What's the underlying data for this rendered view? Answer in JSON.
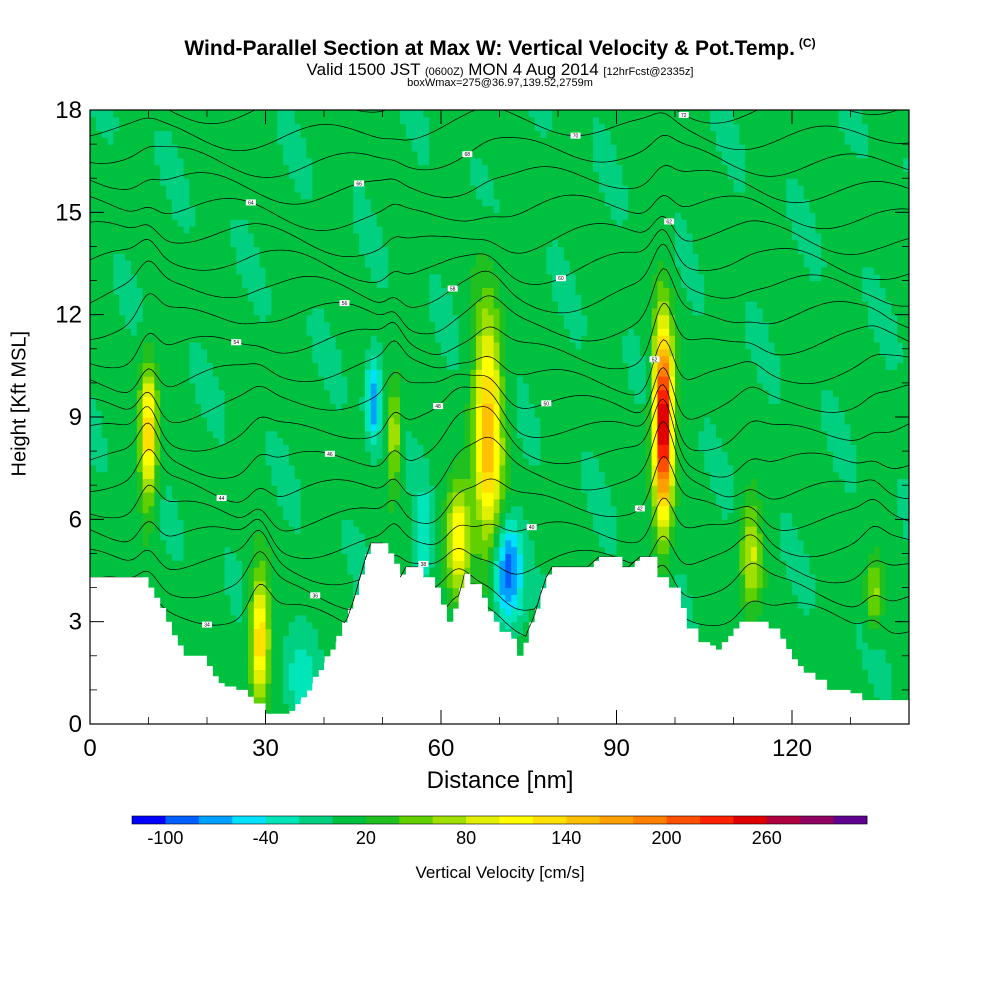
{
  "title": {
    "main": "Wind-Parallel Section at Max W: Vertical Velocity & Pot.Temp.",
    "copyright": "(C)"
  },
  "subtitle": {
    "valid": "Valid 1500 JST",
    "utc": "(0600Z)",
    "date": "MON 4 Aug 2014",
    "forecast": "[12hrFcst@2335z]",
    "box": "boxWmax=275@36.97,139.52,2759m"
  },
  "chart_data": {
    "type": "heatmap",
    "title": "Wind-Parallel Section at Max W: Vertical Velocity & Pot.Temp.",
    "xlabel": "Distance [nm]",
    "ylabel": "Height [Kft MSL]",
    "xlim": [
      0,
      140
    ],
    "ylim": [
      0,
      18
    ],
    "x_ticks": [
      0,
      30,
      60,
      90,
      120
    ],
    "y_ticks": [
      0,
      3,
      6,
      9,
      12,
      15,
      18
    ],
    "x_tick_labels": [
      "0",
      "30",
      "60",
      "90",
      "120"
    ],
    "y_tick_labels": [
      "0",
      "3",
      "6",
      "9",
      "12",
      "15",
      "18"
    ],
    "colorbar": {
      "label": "Vertical Velocity [cm/s]",
      "tick_labels": [
        "-100",
        "-40",
        "20",
        "80",
        "140",
        "200",
        "260"
      ],
      "colors": [
        "#0000ff",
        "#0060ff",
        "#00a0ff",
        "#00e0ff",
        "#00e6b8",
        "#00d080",
        "#00c040",
        "#20c020",
        "#60d000",
        "#a0e000",
        "#e0f000",
        "#ffff00",
        "#ffe000",
        "#ffc000",
        "#ffa000",
        "#ff8000",
        "#ff5000",
        "#ff2000",
        "#e00000",
        "#b00040",
        "#900060",
        "#600090"
      ]
    },
    "terrain": [
      [
        0,
        4.3
      ],
      [
        9,
        4.3
      ],
      [
        10,
        4.0
      ],
      [
        11,
        3.7
      ],
      [
        12,
        3.4
      ],
      [
        13,
        3.0
      ],
      [
        14,
        2.6
      ],
      [
        15,
        2.3
      ],
      [
        16,
        2.0
      ],
      [
        19,
        2.0
      ],
      [
        20,
        1.7
      ],
      [
        21,
        1.4
      ],
      [
        22,
        1.2
      ],
      [
        23,
        1.1
      ],
      [
        25,
        1.0
      ],
      [
        27,
        0.8
      ],
      [
        28,
        0.6
      ],
      [
        30,
        0.3
      ],
      [
        34,
        0.3
      ],
      [
        35,
        0.4
      ],
      [
        36,
        0.7
      ],
      [
        38,
        1.2
      ],
      [
        40,
        1.8
      ],
      [
        42,
        2.4
      ],
      [
        44,
        3.1
      ],
      [
        45,
        3.6
      ],
      [
        46,
        4.2
      ],
      [
        47,
        4.8
      ],
      [
        48,
        5.3
      ],
      [
        50,
        5.3
      ],
      [
        51,
        5.0
      ],
      [
        52,
        4.7
      ],
      [
        53,
        4.3
      ],
      [
        54,
        4.6
      ],
      [
        56,
        4.6
      ],
      [
        57,
        4.3
      ],
      [
        59,
        4.0
      ],
      [
        60,
        3.5
      ],
      [
        61,
        3.0
      ],
      [
        62,
        3.0
      ],
      [
        63,
        3.7
      ],
      [
        64,
        4.4
      ],
      [
        65,
        4.1
      ],
      [
        66,
        4.1
      ],
      [
        67,
        3.7
      ],
      [
        68,
        3.3
      ],
      [
        69,
        3.0
      ],
      [
        70,
        2.7
      ],
      [
        71,
        2.7
      ],
      [
        72,
        2.5
      ],
      [
        73,
        2.0
      ],
      [
        74,
        2.0
      ],
      [
        75,
        2.8
      ],
      [
        76,
        3.2
      ],
      [
        77,
        3.8
      ],
      [
        78,
        4.3
      ],
      [
        79,
        4.6
      ],
      [
        85,
        4.6
      ],
      [
        87,
        4.9
      ],
      [
        90,
        4.9
      ],
      [
        91,
        4.6
      ],
      [
        92,
        4.6
      ],
      [
        94,
        4.9
      ],
      [
        96,
        4.9
      ],
      [
        97,
        4.3
      ],
      [
        99,
        4.0
      ],
      [
        101,
        3.4
      ],
      [
        102,
        2.8
      ],
      [
        104,
        2.4
      ],
      [
        106,
        2.3
      ],
      [
        107,
        2.0
      ],
      [
        108,
        2.4
      ],
      [
        110,
        2.8
      ],
      [
        111,
        3.0
      ],
      [
        115,
        3.0
      ],
      [
        116,
        2.8
      ],
      [
        118,
        2.5
      ],
      [
        119,
        2.2
      ],
      [
        120,
        1.9
      ],
      [
        121,
        1.7
      ],
      [
        122,
        1.5
      ],
      [
        124,
        1.3
      ],
      [
        126,
        1.0
      ],
      [
        128,
        1.0
      ],
      [
        130,
        0.9
      ],
      [
        132,
        0.7
      ],
      [
        140,
        0.7
      ]
    ],
    "updrafts": [
      {
        "x": 10,
        "y": 8.5,
        "w": 140,
        "half_width": 1.5,
        "half_height": 2.0
      },
      {
        "x": 29,
        "y": 2.5,
        "w": 140,
        "half_width": 1.6,
        "half_height": 1.8
      },
      {
        "x": 52,
        "y": 8.5,
        "w": 80,
        "half_width": 1.2,
        "half_height": 1.5
      },
      {
        "x": 63,
        "y": 5.5,
        "w": 120,
        "half_width": 2.0,
        "half_height": 1.6
      },
      {
        "x": 68,
        "y": 8.5,
        "w": 150,
        "half_width": 2.4,
        "half_height": 3.5
      },
      {
        "x": 98,
        "y": 8.8,
        "w": 275,
        "half_width": 1.6,
        "half_height": 2.8
      },
      {
        "x": 113,
        "y": 5.0,
        "w": 80,
        "half_width": 1.8,
        "half_height": 1.6
      },
      {
        "x": 134,
        "y": 3.8,
        "w": 60,
        "half_width": 1.5,
        "half_height": 1.0
      }
    ],
    "downdrafts": [
      {
        "x": 36,
        "y": 1.3,
        "w": -40,
        "half_width": 2.5,
        "half_height": 1.2
      },
      {
        "x": 48.5,
        "y": 9.5,
        "w": -80,
        "half_width": 1.2,
        "half_height": 1.3
      },
      {
        "x": 71.5,
        "y": 4.5,
        "w": -100,
        "half_width": 2.5,
        "half_height": 1.5
      },
      {
        "x": 57,
        "y": 5.5,
        "w": -50,
        "half_width": 1.2,
        "half_height": 1.5
      }
    ],
    "pot_temp_contour_labels": [
      "34",
      "36",
      "38",
      "40",
      "42",
      "44",
      "46",
      "48",
      "50",
      "52",
      "54",
      "56",
      "58",
      "60",
      "62",
      "64",
      "66",
      "68",
      "70",
      "72"
    ]
  }
}
